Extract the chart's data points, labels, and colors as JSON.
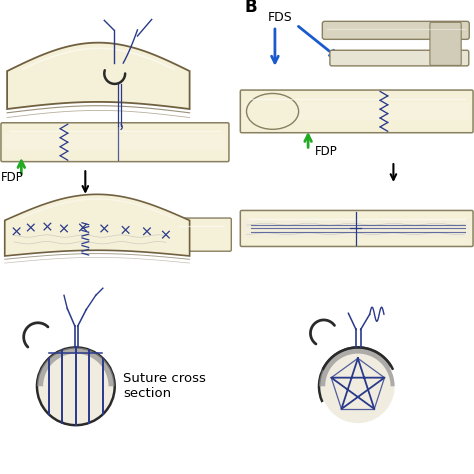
{
  "label_B": "B",
  "label_FDS": "FDS",
  "label_FDP_left": "FDP",
  "label_FDP_right": "FDP",
  "label_suture": "Suture cross\nsection",
  "tendon_color": "#f5f0d8",
  "tendon_edge": "#888060",
  "tendon_dark": "#706040",
  "suture_color": "#2a3a8a",
  "needle_color": "#2a2a2a",
  "arrow_green": "#22aa22",
  "arrow_blue": "#1a5acc",
  "bg_color": "#ffffff",
  "fds_color": "#d8d4c0",
  "fds_light": "#e8e4d4"
}
